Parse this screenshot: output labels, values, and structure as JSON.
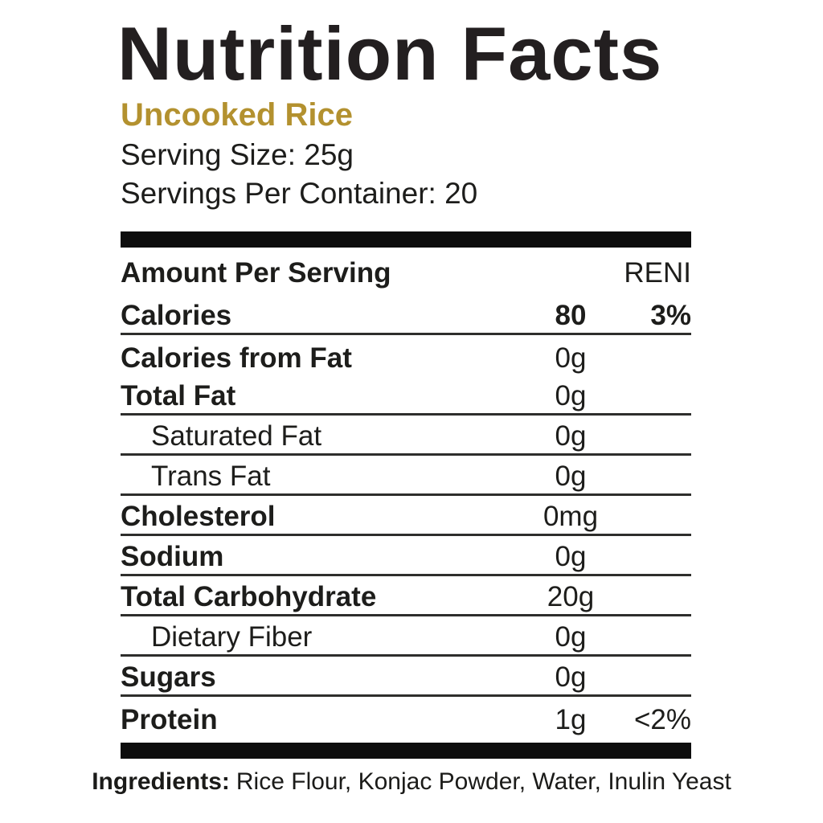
{
  "label": {
    "title": "Nutrition Facts",
    "product_name": "Uncooked Rice",
    "serving_size": "Serving Size: 25g",
    "servings_per_container": "Servings Per Container: 20",
    "column_header": {
      "amount_label": "Amount Per Serving",
      "daily_value_label": "RENI"
    },
    "rows": [
      {
        "name": "Calories",
        "amount": "80",
        "percent": "3%"
      },
      {
        "name": "Calories from Fat",
        "amount": "0g",
        "percent": ""
      },
      {
        "name": "Total Fat",
        "amount": "0g",
        "percent": ""
      },
      {
        "name": "Saturated Fat",
        "amount": "0g",
        "percent": ""
      },
      {
        "name": "Trans Fat",
        "amount": "0g",
        "percent": ""
      },
      {
        "name": "Cholesterol",
        "amount": "0mg",
        "percent": ""
      },
      {
        "name": "Sodium",
        "amount": "0g",
        "percent": ""
      },
      {
        "name": "Total Carbohydrate",
        "amount": "20g",
        "percent": ""
      },
      {
        "name": "Dietary Fiber",
        "amount": "0g",
        "percent": ""
      },
      {
        "name": "Sugars",
        "amount": "0g",
        "percent": ""
      },
      {
        "name": "Protein",
        "amount": "1g",
        "percent": "<2%"
      }
    ],
    "ingredients": {
      "label": "Ingredients:",
      "text": "Rice Flour, Konjac Powder, Water, Inulin Yeast"
    },
    "colors": {
      "accent_gold": "#B3912F",
      "ink": "#1D1D1B",
      "bar_black": "#0D0D0D"
    }
  }
}
